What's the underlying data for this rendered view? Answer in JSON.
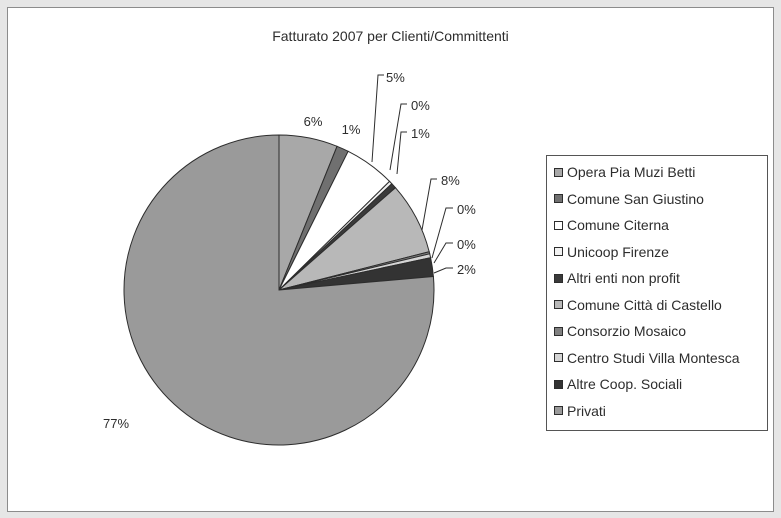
{
  "chart_data": {
    "type": "pie",
    "title": "Fatturato 2007 per Clienti/Committenti",
    "legend_position": "right",
    "slices": [
      {
        "name": "Opera Pia Muzi Betti",
        "value": 6,
        "label": "6%",
        "color": "#a8a8a8"
      },
      {
        "name": "Comune San Giustino",
        "value": 1,
        "label": "1%",
        "color": "#707070"
      },
      {
        "name": "Comune Citerna",
        "value": 5,
        "label": "5%",
        "color": "#ffffff"
      },
      {
        "name": "Unicoop Firenze",
        "value": 0,
        "label": "0%",
        "color": "#f2f2f2"
      },
      {
        "name": "Altri enti non profit",
        "value": 1,
        "label": "1%",
        "color": "#3a3a3a"
      },
      {
        "name": "Comune Città di Castello",
        "value": 8,
        "label": "8%",
        "color": "#b8b8b8"
      },
      {
        "name": "Consorzio Mosaico",
        "value": 0,
        "label": "0%",
        "color": "#808080"
      },
      {
        "name": "Centro Studi Villa Montesca",
        "value": 0,
        "label": "0%",
        "color": "#d4d4d4"
      },
      {
        "name": "Altre Coop. Sociali",
        "value": 2,
        "label": "2%",
        "color": "#333333"
      },
      {
        "name": "Privati",
        "value": 77,
        "label": "77%",
        "color": "#9a9a9a"
      }
    ]
  }
}
